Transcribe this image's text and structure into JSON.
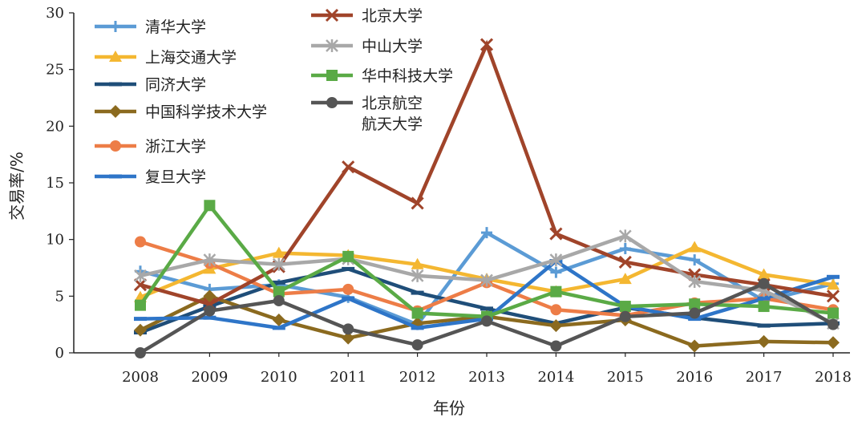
{
  "chart_data": {
    "type": "line",
    "title": "",
    "xlabel": "年份",
    "ylabel": "交易率/%",
    "x": [
      2008,
      2009,
      2010,
      2011,
      2012,
      2013,
      2014,
      2015,
      2016,
      2017,
      2018
    ],
    "ylim": [
      0,
      30
    ],
    "yticks": [
      0,
      5,
      10,
      15,
      20,
      25,
      30
    ],
    "grid": false,
    "legend_position": "top-left, inside plot (two columns)",
    "series": [
      {
        "name": "清华大学",
        "color": "#5b9bd5",
        "marker": "plus",
        "values": [
          7.2,
          5.6,
          6.0,
          4.9,
          2.5,
          10.6,
          7.1,
          9.2,
          8.2,
          4.6,
          6.1
        ]
      },
      {
        "name": "上海交通大学",
        "color": "#f4b731",
        "marker": "triangle",
        "values": [
          4.9,
          7.4,
          8.8,
          8.6,
          7.8,
          6.5,
          5.4,
          6.5,
          9.3,
          6.9,
          6.0
        ]
      },
      {
        "name": "同济大学",
        "color": "#1f4e79",
        "marker": "dash",
        "values": [
          1.8,
          4.1,
          6.2,
          7.4,
          5.3,
          3.9,
          2.6,
          4.0,
          3.1,
          2.4,
          2.6
        ]
      },
      {
        "name": "中国科学技术大学",
        "color": "#8b6a1f",
        "marker": "diamond",
        "values": [
          2.0,
          5.0,
          2.9,
          1.3,
          2.6,
          3.2,
          2.4,
          2.9,
          0.6,
          1.0,
          0.9
        ]
      },
      {
        "name": "浙江大学",
        "color": "#ed7d47",
        "marker": "circle",
        "values": [
          9.8,
          7.9,
          5.2,
          5.6,
          3.7,
          6.2,
          3.8,
          3.3,
          4.4,
          4.8,
          3.8
        ]
      },
      {
        "name": "复旦大学",
        "color": "#2e75c8",
        "marker": "dash",
        "values": [
          3.0,
          3.1,
          2.2,
          4.8,
          2.2,
          3.0,
          8.1,
          4.1,
          3.0,
          4.8,
          6.7
        ]
      },
      {
        "name": "北京大学",
        "color": "#a0442a",
        "marker": "x",
        "values": [
          6.0,
          4.3,
          7.6,
          16.4,
          13.2,
          27.2,
          10.5,
          8.0,
          6.9,
          6.0,
          5.0
        ]
      },
      {
        "name": "中山大学",
        "color": "#a8a8a8",
        "marker": "star",
        "values": [
          6.8,
          8.2,
          7.8,
          8.3,
          6.8,
          6.4,
          8.2,
          10.3,
          6.3,
          5.5,
          2.6
        ]
      },
      {
        "name": "华中科技大学",
        "color": "#5aaa46",
        "marker": "square",
        "values": [
          4.2,
          13.0,
          5.4,
          8.5,
          3.5,
          3.2,
          5.4,
          4.1,
          4.3,
          4.1,
          3.5
        ]
      },
      {
        "name": "北京航空航天大学",
        "color": "#555555",
        "marker": "circle",
        "values": [
          0.0,
          3.7,
          4.6,
          2.1,
          0.7,
          2.8,
          0.6,
          3.2,
          3.5,
          6.1,
          2.5
        ]
      }
    ]
  }
}
